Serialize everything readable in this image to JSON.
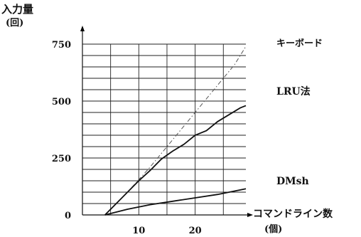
{
  "chart_data": {
    "type": "line",
    "ylabel": "入力量",
    "ylabel_unit": "(回)",
    "xlabel": "コマンドライン数",
    "xlabel_unit": "(個)",
    "xlim": [
      0,
      29
    ],
    "ylim": [
      0,
      800
    ],
    "x_ticks": [
      10,
      20
    ],
    "y_ticks": [
      0,
      250,
      500,
      750
    ],
    "grid": true,
    "series": [
      {
        "name": "キーボード",
        "style": "dash-dot",
        "x": [
          4,
          8,
          12,
          16,
          20,
          24,
          27,
          29
        ],
        "y": [
          0,
          100,
          210,
          330,
          450,
          570,
          660,
          740
        ]
      },
      {
        "name": "LRU法",
        "style": "solid",
        "x": [
          4,
          6,
          8,
          10,
          12,
          14,
          16,
          18,
          20,
          22,
          24,
          26,
          28,
          29
        ],
        "y": [
          0,
          50,
          100,
          150,
          195,
          245,
          280,
          310,
          350,
          370,
          410,
          440,
          470,
          480
        ]
      },
      {
        "name": "DMsh",
        "style": "solid",
        "x": [
          4,
          8,
          12,
          16,
          20,
          24,
          29
        ],
        "y": [
          0,
          25,
          45,
          60,
          75,
          90,
          115
        ]
      }
    ]
  }
}
